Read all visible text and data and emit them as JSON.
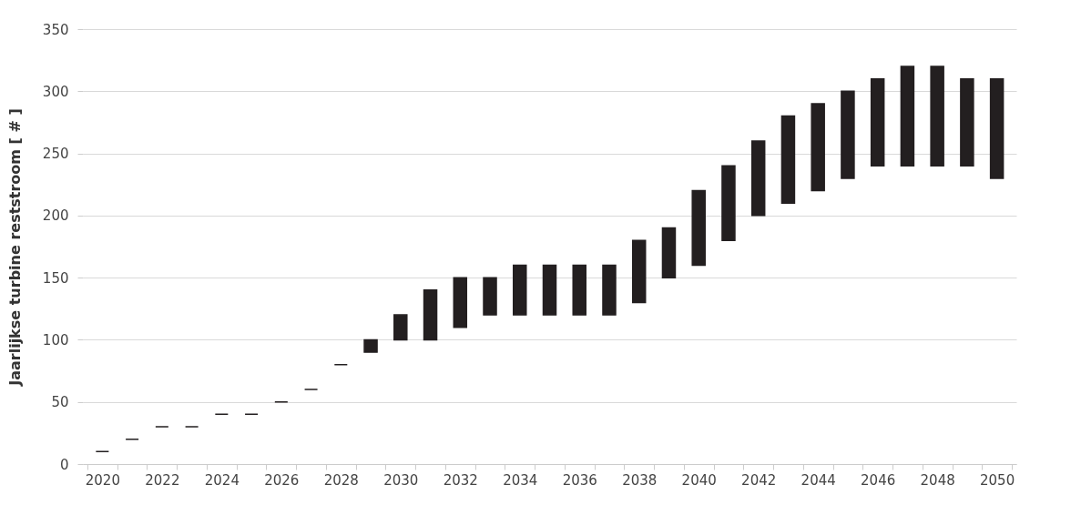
{
  "chart_data": {
    "type": "bar",
    "ylabel": "Jaarlijkse turbine reststroom [ # ]",
    "x": [
      2020,
      2021,
      2022,
      2023,
      2024,
      2025,
      2026,
      2027,
      2028,
      2029,
      2030,
      2031,
      2032,
      2033,
      2034,
      2035,
      2036,
      2037,
      2038,
      2039,
      2040,
      2041,
      2042,
      2043,
      2044,
      2045,
      2046,
      2047,
      2048,
      2049,
      2050
    ],
    "base": [
      10,
      20,
      30,
      30,
      40,
      40,
      50,
      60,
      80,
      90,
      100,
      100,
      110,
      120,
      120,
      120,
      120,
      120,
      130,
      150,
      160,
      180,
      200,
      210,
      220,
      230,
      240,
      240,
      240,
      240,
      230
    ],
    "values": [
      0,
      0,
      0,
      0,
      0,
      0,
      0,
      0,
      0,
      10,
      20,
      40,
      40,
      30,
      40,
      40,
      40,
      40,
      50,
      40,
      60,
      60,
      60,
      70,
      70,
      70,
      70,
      80,
      80,
      70,
      80
    ],
    "color": "#231f20",
    "xlim": [
      2019.5,
      2050.5
    ],
    "xticks": [
      {
        "value": 2019.5,
        "label": null
      },
      2020,
      {
        "value": 2020.5,
        "label": null
      },
      {
        "value": 2021.5,
        "label": null
      },
      2022,
      {
        "value": 2022.5,
        "label": null
      },
      {
        "value": 2023.5,
        "label": null
      },
      2024,
      {
        "value": 2024.5,
        "label": null
      },
      {
        "value": 2025.5,
        "label": null
      },
      2026,
      {
        "value": 2026.5,
        "label": null
      },
      {
        "value": 2027.5,
        "label": null
      },
      2028,
      {
        "value": 2028.5,
        "label": null
      },
      {
        "value": 2029.5,
        "label": null
      },
      2030,
      {
        "value": 2030.5,
        "label": null
      },
      {
        "value": 2031.5,
        "label": null
      },
      2032,
      {
        "value": 2032.5,
        "label": null
      },
      {
        "value": 2033.5,
        "label": null
      },
      2034,
      {
        "value": 2034.5,
        "label": null
      },
      {
        "value": 2035.5,
        "label": null
      },
      2036,
      {
        "value": 2036.5,
        "label": null
      },
      {
        "value": 2037.5,
        "label": null
      },
      2038,
      {
        "value": 2038.5,
        "label": null
      },
      {
        "value": 2039.5,
        "label": null
      },
      2040,
      {
        "value": 2040.5,
        "label": null
      },
      {
        "value": 2041.5,
        "label": null
      },
      2042,
      {
        "value": 2042.5,
        "label": null
      },
      {
        "value": 2043.5,
        "label": null
      },
      2044,
      {
        "value": 2044.5,
        "label": null
      },
      {
        "value": 2045.5,
        "label": null
      },
      2046,
      {
        "value": 2046.5,
        "label": null
      },
      {
        "value": 2047.5,
        "label": null
      },
      2048,
      {
        "value": 2048.5,
        "label": null
      },
      {
        "value": 2049.5,
        "label": null
      },
      2050,
      {
        "value": 2050.5,
        "label": null
      }
    ],
    "ylim": [
      0,
      350
    ],
    "yticks": [
      0,
      50,
      100,
      150,
      200,
      250,
      300,
      350
    ],
    "grid": "y"
  }
}
